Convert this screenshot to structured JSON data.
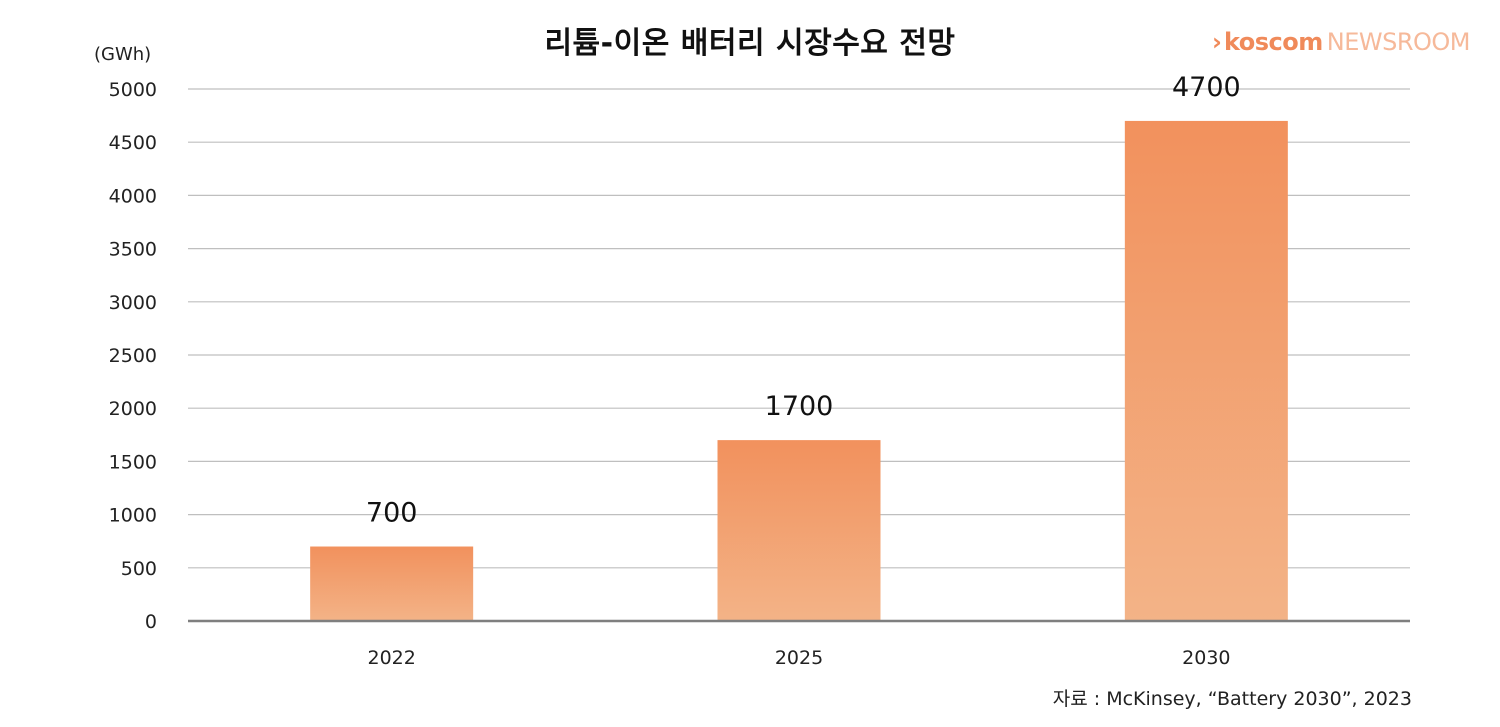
{
  "chart_data": {
    "type": "bar",
    "title": "리튬-이온 배터리 시장수요 전망",
    "unit_label": "(GWh)",
    "categories": [
      "2022",
      "2025",
      "2030"
    ],
    "values": [
      700,
      1700,
      4700
    ],
    "data_labels": [
      "700",
      "1700",
      "4700"
    ],
    "ylim": [
      0,
      5000
    ],
    "yticks": [
      0,
      500,
      1000,
      1500,
      2000,
      2500,
      3000,
      3500,
      4000,
      4500,
      5000
    ],
    "ytick_labels": [
      "0",
      "500",
      "1000",
      "1500",
      "2000",
      "2500",
      "3000",
      "3500",
      "4000",
      "4500",
      "5000"
    ],
    "grid": true,
    "colors": {
      "bar_top": "#f2915d",
      "bar_bottom": "#f3b387",
      "grid": "#bfbfbf",
      "baseline": "#7f7f7f"
    }
  },
  "source": "자료 : McKinsey, “Battery 2030”, 2023",
  "logo": {
    "chevron": "›",
    "brand": "koscom",
    "suffix": "NEWSROOM"
  }
}
